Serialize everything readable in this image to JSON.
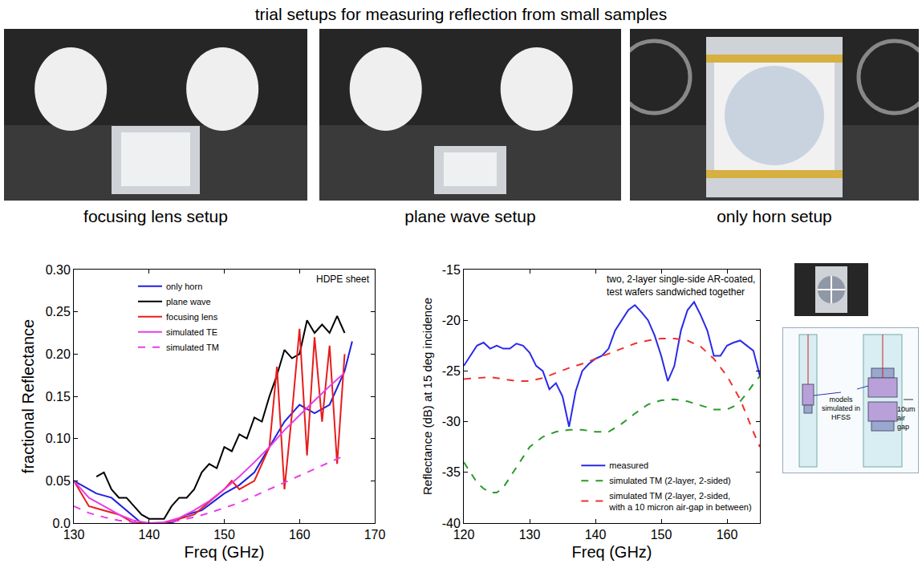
{
  "title": "trial setups for measuring reflection from small samples",
  "photos": [
    {
      "caption": "focusing lens setup"
    },
    {
      "caption": "plane wave setup"
    },
    {
      "caption": "only horn setup"
    }
  ],
  "chart_data": [
    {
      "type": "line",
      "x_title": "Freq (GHz)",
      "y_title": "fractional Reflectance",
      "annotations": [
        "HDPE sheet"
      ],
      "xlim": [
        130,
        170
      ],
      "xticks": [
        130,
        140,
        150,
        160,
        170
      ],
      "ylim": [
        0,
        0.3
      ],
      "yticks": [
        {
          "value": 0,
          "label": "0.0"
        },
        0.05,
        {
          "value": 0.1,
          "label": "0.10"
        },
        0.15,
        {
          "value": 0.2,
          "label": "0.20"
        },
        0.25,
        {
          "value": 0.3,
          "label": "0.30"
        }
      ],
      "grid": false,
      "legend": "upper left",
      "series": [
        {
          "name": "only horn",
          "color": "#1f1fe0",
          "line_style": "solid",
          "x": [
            130,
            133,
            135,
            137,
            139,
            141,
            143,
            145,
            147,
            150,
            152,
            154,
            156,
            158,
            160,
            162,
            164,
            166,
            167
          ],
          "values": [
            0.05,
            0.035,
            0.03,
            0.015,
            0.0,
            0.0,
            0.0,
            0.01,
            0.015,
            0.035,
            0.045,
            0.06,
            0.09,
            0.12,
            0.14,
            0.13,
            0.14,
            0.18,
            0.215
          ]
        },
        {
          "name": "plane wave",
          "color": "#000000",
          "line_style": "solid",
          "x": [
            133,
            134,
            135,
            136,
            137,
            138,
            139,
            140,
            141,
            142,
            143,
            144,
            145,
            146,
            147,
            148,
            149,
            150,
            151,
            152,
            153,
            154,
            155,
            156,
            157,
            158,
            159,
            160,
            161,
            162,
            163,
            164,
            165,
            166
          ],
          "values": [
            0.055,
            0.06,
            0.04,
            0.03,
            0.03,
            0.02,
            0.01,
            0.005,
            0.005,
            0.005,
            0.02,
            0.03,
            0.03,
            0.04,
            0.06,
            0.07,
            0.065,
            0.09,
            0.085,
            0.105,
            0.1,
            0.125,
            0.12,
            0.15,
            0.175,
            0.205,
            0.195,
            0.2,
            0.24,
            0.225,
            0.235,
            0.225,
            0.245,
            0.225
          ]
        },
        {
          "name": "focusing lens",
          "color": "#e81c1c",
          "line_style": "solid",
          "x": [
            130,
            132,
            134,
            136,
            138,
            140,
            142,
            144,
            146,
            148,
            150,
            151,
            152,
            153,
            154,
            155,
            156,
            157,
            158,
            159,
            160,
            161,
            162,
            163,
            164,
            165,
            166
          ],
          "values": [
            0.05,
            0.02,
            0.015,
            0.01,
            0.0,
            0.0,
            0.0,
            0.005,
            0.01,
            0.025,
            0.04,
            0.05,
            0.04,
            0.045,
            0.05,
            0.07,
            0.09,
            0.185,
            0.04,
            0.13,
            0.23,
            0.08,
            0.22,
            0.12,
            0.21,
            0.07,
            0.2
          ]
        },
        {
          "name": "simulated TE",
          "color": "#e83ce8",
          "line_style": "solid",
          "x": [
            130,
            132,
            134,
            136,
            138,
            140,
            142,
            144,
            146,
            148,
            150,
            152,
            154,
            156,
            158,
            160,
            162,
            164,
            166
          ],
          "values": [
            0.05,
            0.03,
            0.02,
            0.01,
            0.003,
            0.0,
            0.001,
            0.006,
            0.015,
            0.026,
            0.04,
            0.055,
            0.072,
            0.09,
            0.11,
            0.128,
            0.145,
            0.162,
            0.178
          ]
        },
        {
          "name": "simulated TM",
          "color": "#e83ce8",
          "line_style": "dash",
          "x": [
            130,
            132,
            134,
            136,
            138,
            140,
            142,
            144,
            146,
            148,
            150,
            152,
            154,
            156,
            158,
            160,
            162,
            164,
            166
          ],
          "values": [
            0.02,
            0.012,
            0.007,
            0.003,
            0.001,
            0.0,
            0.0,
            0.003,
            0.007,
            0.012,
            0.018,
            0.024,
            0.032,
            0.04,
            0.048,
            0.056,
            0.064,
            0.072,
            0.08
          ]
        }
      ]
    },
    {
      "type": "line",
      "x_title": "Freq (GHz)",
      "y_title": "Reflectance (dB) at 15 deg incidence",
      "annotations": [
        "two, 2-layer single-side AR-coated, test wafers sandwiched together"
      ],
      "xlim": [
        120,
        165
      ],
      "xticks": [
        120,
        130,
        140,
        150,
        160
      ],
      "ylim": [
        -40,
        -15
      ],
      "yticks": [
        -40,
        -35,
        -30,
        -25,
        -20,
        -15
      ],
      "grid": false,
      "legend": "lower right",
      "series": [
        {
          "name": "measured",
          "color": "#2a2ae8",
          "line_style": "solid",
          "x": [
            120,
            121,
            122,
            123,
            124,
            125,
            126,
            127,
            128,
            129,
            130,
            131,
            132,
            133,
            134,
            135,
            136,
            137,
            138,
            139,
            140,
            141,
            142,
            143,
            144,
            145,
            146,
            147,
            148,
            149,
            150,
            151,
            152,
            153,
            154,
            155,
            156,
            157,
            158,
            159,
            160,
            161,
            162,
            163,
            164,
            165
          ],
          "values": [
            -24.5,
            -23.5,
            -22.5,
            -22.2,
            -22.8,
            -22.5,
            -22.8,
            -22.8,
            -22.3,
            -22.5,
            -23.2,
            -24.5,
            -25,
            -26.8,
            -26.2,
            -27.5,
            -30.5,
            -27,
            -25,
            -24.3,
            -23.8,
            -23.5,
            -22.8,
            -21,
            -20,
            -19,
            -18.5,
            -19.2,
            -20,
            -21.5,
            -23.5,
            -26,
            -24.5,
            -21,
            -19,
            -18.2,
            -19.5,
            -21,
            -23.5,
            -23.5,
            -22.5,
            -22.2,
            -22,
            -22.5,
            -23,
            -25.5
          ]
        },
        {
          "name": "simulated TM (2-layer, 2-sided)",
          "color": "#2a9a2a",
          "line_style": "dash",
          "x": [
            120,
            121,
            122,
            123,
            124,
            125,
            126,
            127,
            128,
            129,
            130,
            132,
            134,
            136,
            138,
            140,
            142,
            144,
            146,
            148,
            150,
            152,
            154,
            156,
            158,
            160,
            161,
            162,
            163,
            164,
            165
          ],
          "values": [
            -34,
            -35,
            -36,
            -36.6,
            -37,
            -37,
            -36.5,
            -35.5,
            -34.5,
            -33.5,
            -32.5,
            -31.5,
            -31,
            -30.8,
            -30.8,
            -31,
            -31,
            -30.2,
            -29.2,
            -28.3,
            -27.9,
            -27.8,
            -28,
            -28.4,
            -28.8,
            -28.8,
            -28.5,
            -28,
            -27.2,
            -26.3,
            -25.5
          ]
        },
        {
          "name": "simulated TM (2-layer, 2-sided, with a 10 micron air-gap in between)",
          "color": "#f03030",
          "line_style": "dash",
          "x": [
            120,
            122,
            124,
            126,
            128,
            130,
            132,
            134,
            136,
            138,
            140,
            142,
            144,
            146,
            148,
            150,
            152,
            154,
            156,
            158,
            160,
            162,
            164,
            165
          ],
          "values": [
            -25.8,
            -25.7,
            -25.6,
            -25.8,
            -26,
            -26,
            -25.7,
            -25.2,
            -24.7,
            -24.3,
            -23.8,
            -23.3,
            -22.8,
            -22.3,
            -22,
            -21.8,
            -21.8,
            -22,
            -22.6,
            -23.8,
            -25.5,
            -27.8,
            -31,
            -32.5
          ]
        }
      ]
    }
  ],
  "diagram": {
    "label": "models simulated in HFSS",
    "gap_label": "10um air gap"
  }
}
